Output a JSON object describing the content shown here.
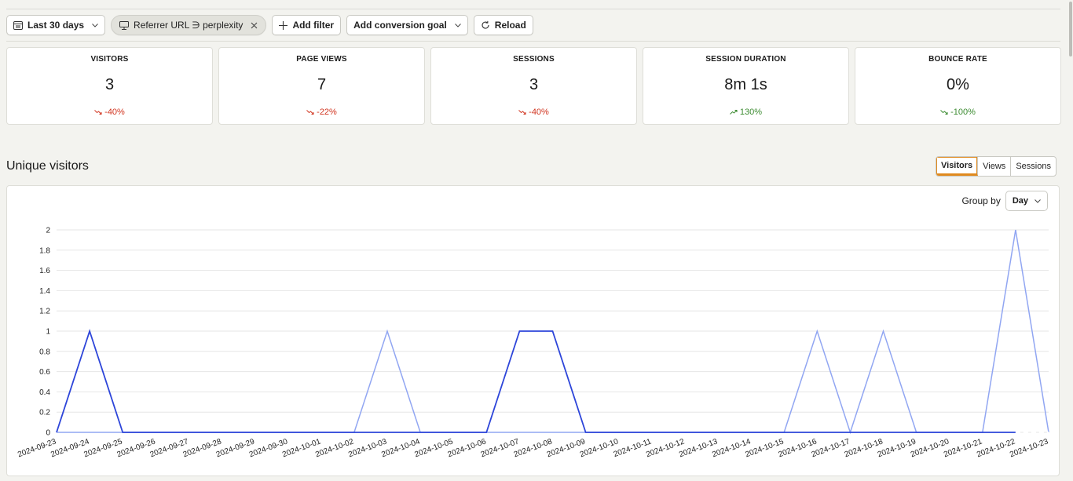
{
  "toolbar": {
    "date_range_label": "Last 30 days",
    "filter_label": "Referrer URL ∋ perplexity",
    "add_filter_label": "Add filter",
    "add_goal_label": "Add conversion goal",
    "reload_label": "Reload"
  },
  "stats": [
    {
      "label": "VISITORS",
      "value": "3",
      "change": "-40%",
      "trend": "down",
      "tone": "negative"
    },
    {
      "label": "PAGE VIEWS",
      "value": "7",
      "change": "-22%",
      "trend": "down",
      "tone": "negative"
    },
    {
      "label": "SESSIONS",
      "value": "3",
      "change": "-40%",
      "trend": "down",
      "tone": "negative"
    },
    {
      "label": "SESSION DURATION",
      "value": "8m 1s",
      "change": "130%",
      "trend": "up",
      "tone": "positive"
    },
    {
      "label": "BOUNCE RATE",
      "value": "0%",
      "change": "-100%",
      "trend": "down",
      "tone": "positive"
    }
  ],
  "section": {
    "title": "Unique visitors"
  },
  "view_tabs": [
    {
      "label": "Visitors",
      "active": true
    },
    {
      "label": "Views",
      "active": false
    },
    {
      "label": "Sessions",
      "active": false
    }
  ],
  "group_by": {
    "label": "Group by",
    "value": "Day"
  },
  "colors": {
    "current_series": "#2d45d9",
    "previous_series": "#91a6f2",
    "negative": "#d1341f",
    "positive": "#3a8a2f",
    "active_tab_accent": "#e08a1e"
  },
  "chart_data": {
    "type": "line",
    "x": [
      "2024-09-23",
      "2024-09-24",
      "2024-09-25",
      "2024-09-26",
      "2024-09-27",
      "2024-09-28",
      "2024-09-29",
      "2024-09-30",
      "2024-10-01",
      "2024-10-02",
      "2024-10-03",
      "2024-10-04",
      "2024-10-05",
      "2024-10-06",
      "2024-10-07",
      "2024-10-08",
      "2024-10-09",
      "2024-10-10",
      "2024-10-11",
      "2024-10-12",
      "2024-10-13",
      "2024-10-14",
      "2024-10-15",
      "2024-10-16",
      "2024-10-17",
      "2024-10-18",
      "2024-10-19",
      "2024-10-20",
      "2024-10-21",
      "2024-10-22",
      "2024-10-23"
    ],
    "series": [
      {
        "values": [
          0,
          1,
          0,
          0,
          0,
          0,
          0,
          0,
          0,
          0,
          0,
          0,
          0,
          0,
          1,
          1,
          0,
          0,
          0,
          0,
          0,
          0,
          0,
          0,
          0,
          0,
          0,
          0,
          0,
          0,
          0
        ],
        "dashed_last_segment": true
      },
      {
        "values": [
          0,
          0,
          0,
          0,
          0,
          0,
          0,
          0,
          0,
          0,
          1,
          0,
          0,
          0,
          0,
          0,
          0,
          0,
          0,
          0,
          0,
          0,
          0,
          1,
          0,
          1,
          0,
          0,
          0,
          2,
          0
        ]
      }
    ],
    "yticks": [
      "0",
      "0.2",
      "0.4",
      "0.6",
      "0.8",
      "1",
      "1.2",
      "1.4",
      "1.6",
      "1.8",
      "2"
    ],
    "ylim": [
      0,
      2
    ],
    "grid": true
  }
}
